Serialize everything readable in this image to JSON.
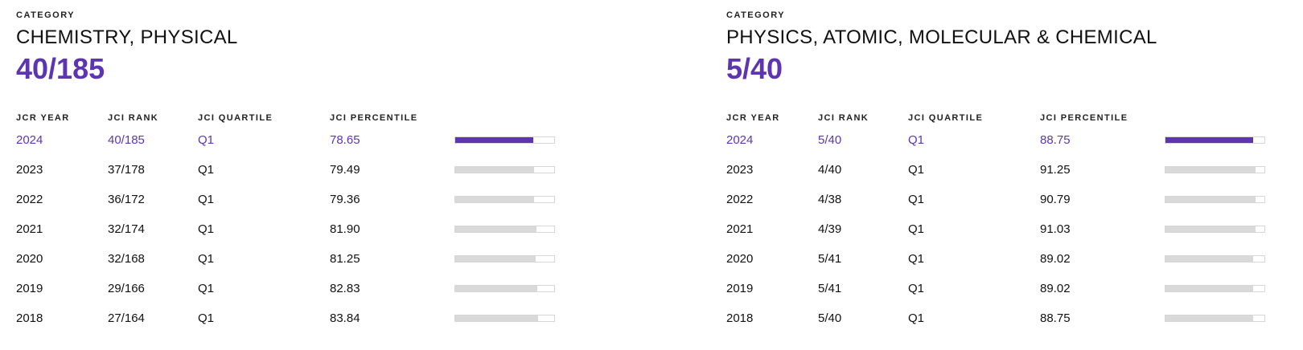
{
  "panels": [
    {
      "category_label": "CATEGORY",
      "category_name": "CHEMISTRY, PHYSICAL",
      "rank": "40/185",
      "headers": [
        "JCR YEAR",
        "JCI RANK",
        "JCI QUARTILE",
        "JCI PERCENTILE"
      ],
      "rows": [
        {
          "year": "2024",
          "rank": "40/185",
          "quartile": "Q1",
          "percentile": "78.65",
          "current": true
        },
        {
          "year": "2023",
          "rank": "37/178",
          "quartile": "Q1",
          "percentile": "79.49"
        },
        {
          "year": "2022",
          "rank": "36/172",
          "quartile": "Q1",
          "percentile": "79.36"
        },
        {
          "year": "2021",
          "rank": "32/174",
          "quartile": "Q1",
          "percentile": "81.90"
        },
        {
          "year": "2020",
          "rank": "32/168",
          "quartile": "Q1",
          "percentile": "81.25"
        },
        {
          "year": "2019",
          "rank": "29/166",
          "quartile": "Q1",
          "percentile": "82.83"
        },
        {
          "year": "2018",
          "rank": "27/164",
          "quartile": "Q1",
          "percentile": "83.84"
        }
      ]
    },
    {
      "category_label": "CATEGORY",
      "category_name": "PHYSICS, ATOMIC, MOLECULAR & CHEMICAL",
      "rank": "5/40",
      "headers": [
        "JCR YEAR",
        "JCI RANK",
        "JCI QUARTILE",
        "JCI PERCENTILE"
      ],
      "rows": [
        {
          "year": "2024",
          "rank": "5/40",
          "quartile": "Q1",
          "percentile": "88.75",
          "current": true
        },
        {
          "year": "2023",
          "rank": "4/40",
          "quartile": "Q1",
          "percentile": "91.25"
        },
        {
          "year": "2022",
          "rank": "4/38",
          "quartile": "Q1",
          "percentile": "90.79"
        },
        {
          "year": "2021",
          "rank": "4/39",
          "quartile": "Q1",
          "percentile": "91.03"
        },
        {
          "year": "2020",
          "rank": "5/41",
          "quartile": "Q1",
          "percentile": "89.02"
        },
        {
          "year": "2019",
          "rank": "5/41",
          "quartile": "Q1",
          "percentile": "89.02"
        },
        {
          "year": "2018",
          "rank": "5/40",
          "quartile": "Q1",
          "percentile": "88.75"
        }
      ]
    }
  ],
  "colors": {
    "accent": "#5e35b1",
    "bar_track": "#d9d9d9"
  }
}
